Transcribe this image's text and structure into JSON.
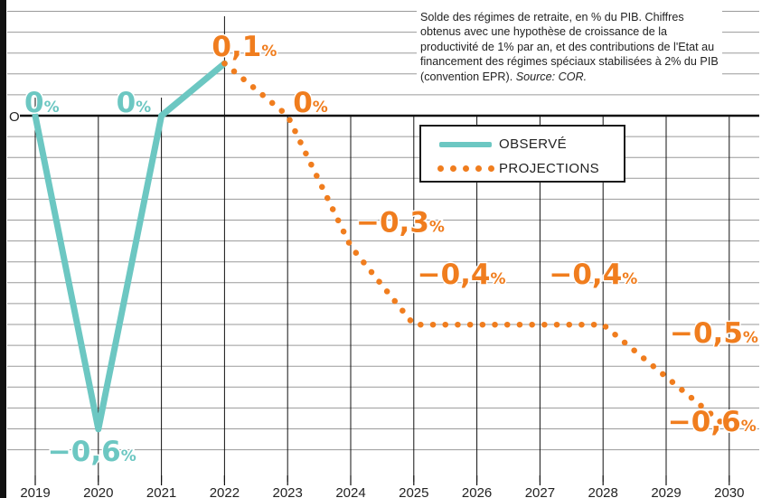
{
  "chart_data": {
    "type": "line",
    "x": [
      2019,
      2020,
      2021,
      2022,
      2023,
      2024,
      2025,
      2026,
      2027,
      2028,
      2029,
      2030
    ],
    "series": [
      {
        "name": "OBSERVÉ",
        "color": "#6cc7c2",
        "style": "solid",
        "points": [
          [
            2019,
            0
          ],
          [
            2020,
            -0.6
          ],
          [
            2021,
            0
          ],
          [
            2022,
            0.1
          ]
        ]
      },
      {
        "name": "PROJECTIONS",
        "color": "#f07d1e",
        "style": "dotted",
        "points": [
          [
            2022,
            0.1
          ],
          [
            2023,
            0
          ],
          [
            2024,
            -0.25
          ],
          [
            2025,
            -0.4
          ],
          [
            2026,
            -0.4
          ],
          [
            2027,
            -0.4
          ],
          [
            2028,
            -0.4
          ],
          [
            2029,
            -0.5
          ],
          [
            2030,
            -0.6
          ]
        ]
      }
    ],
    "data_labels": [
      {
        "year": 2019,
        "text": "0",
        "unit": "%",
        "color": "#6cc7c2"
      },
      {
        "year": 2020,
        "text": "−0,6",
        "unit": "%",
        "color": "#6cc7c2"
      },
      {
        "year": 2021,
        "text": "0",
        "unit": "%",
        "color": "#6cc7c2"
      },
      {
        "year": 2022,
        "text": "0,1",
        "unit": "%",
        "color": "#f07d1e"
      },
      {
        "year": 2023,
        "text": "0",
        "unit": "%",
        "color": "#f07d1e"
      },
      {
        "year": 2024,
        "text": "−0,3",
        "unit": "%",
        "color": "#f07d1e"
      },
      {
        "year": 2026,
        "text": "−0,4",
        "unit": "%",
        "color": "#f07d1e"
      },
      {
        "year": 2027,
        "text": "−0,4",
        "unit": "%",
        "color": "#f07d1e"
      },
      {
        "year": 2029,
        "text": "−0,5",
        "unit": "%",
        "color": "#f07d1e"
      },
      {
        "year": 2030,
        "text": "−0,6",
        "unit": "%",
        "color": "#f07d1e"
      }
    ],
    "zero_label": "O",
    "ylim": [
      -0.65,
      0.18
    ],
    "grid": true,
    "legend_position": "top-right"
  },
  "caption": {
    "text": "Solde des régimes de retraite, en % du PIB. Chiffres obtenus avec une hypothèse de croissance de la productivité de 1% par an, et des contributions de l'Etat au financement des régimes spéciaux stabilisées à 2% du PIB (convention EPR).",
    "source": "Source: COR."
  },
  "legend": {
    "observed": "OBSERVÉ",
    "projections": "PROJECTIONS"
  }
}
